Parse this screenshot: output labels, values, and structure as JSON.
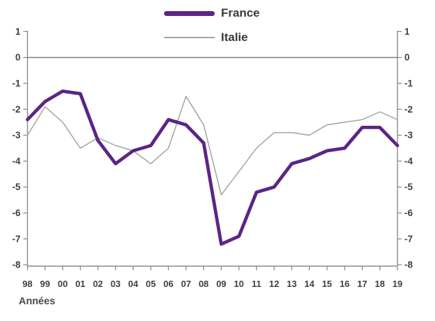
{
  "chart_data": {
    "type": "line",
    "title": "",
    "xlabel": "Années",
    "ylabel": "",
    "ylim": [
      -8,
      1
    ],
    "y_ticks": [
      1,
      0,
      -1,
      -2,
      -3,
      -4,
      -5,
      -6,
      -7,
      -8
    ],
    "grid": false,
    "zero_line": true,
    "dual_y_axis": true,
    "legend_position": "top-center",
    "categories": [
      "98",
      "99",
      "00",
      "01",
      "02",
      "03",
      "04",
      "05",
      "06",
      "07",
      "08",
      "09",
      "10",
      "11",
      "12",
      "13",
      "14",
      "15",
      "16",
      "17",
      "18",
      "19"
    ],
    "series": [
      {
        "name": "France",
        "color": "#5c2585",
        "stroke_width": 4.8,
        "values": [
          -2.4,
          -1.7,
          -1.3,
          -1.4,
          -3.2,
          -4.1,
          -3.6,
          -3.4,
          -2.4,
          -2.6,
          -3.3,
          -7.2,
          -6.9,
          -5.2,
          -5.0,
          -4.1,
          -3.9,
          -3.6,
          -3.5,
          -2.7,
          -2.7,
          -3.4
        ]
      },
      {
        "name": "Italie",
        "color": "#a3a3a3",
        "stroke_width": 1.5,
        "values": [
          -3.0,
          -1.9,
          -2.5,
          -3.5,
          -3.1,
          -3.4,
          -3.6,
          -4.1,
          -3.5,
          -1.5,
          -2.6,
          -5.3,
          -4.4,
          -3.5,
          -2.9,
          -2.9,
          -3.0,
          -2.6,
          -2.5,
          -2.4,
          -2.1,
          -2.4
        ]
      }
    ],
    "axis_color": "#8a8a8a",
    "tick_text_color": "#3f3f3f"
  }
}
